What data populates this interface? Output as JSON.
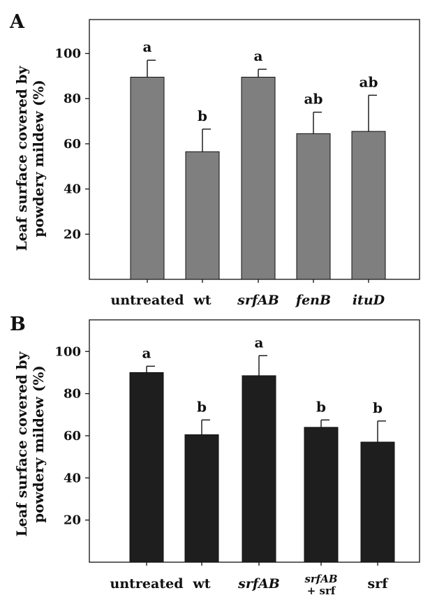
{
  "chart_data": [
    {
      "type": "bar",
      "panel": "A",
      "ylabel_line1": "Leaf surface covered by",
      "ylabel_line2": "powdery mildew  (%)",
      "ylim": [
        0,
        115
      ],
      "yticks": [
        20,
        40,
        60,
        80,
        100
      ],
      "categories": [
        {
          "lines": [
            "untreated"
          ],
          "italic": false
        },
        {
          "lines": [
            "wt"
          ],
          "italic": false
        },
        {
          "lines": [
            "srfAB"
          ],
          "italic": true
        },
        {
          "lines": [
            "fenB"
          ],
          "italic": true
        },
        {
          "lines": [
            "ituD"
          ],
          "italic": true
        }
      ],
      "values": [
        89.5,
        56.5,
        89.5,
        64.5,
        65.5
      ],
      "errors": [
        7.5,
        10,
        3.5,
        9.5,
        16
      ],
      "significance": [
        "a",
        "b",
        "a",
        "ab",
        "ab"
      ],
      "bar_color": "#7f7f7f",
      "grid": false
    },
    {
      "type": "bar",
      "panel": "B",
      "ylabel_line1": "Leaf surface covered by",
      "ylabel_line2": "powdery mildew  (%)",
      "ylim": [
        0,
        115
      ],
      "yticks": [
        20,
        40,
        60,
        80,
        100
      ],
      "categories": [
        {
          "lines": [
            "untreated"
          ],
          "italic": false
        },
        {
          "lines": [
            "wt"
          ],
          "italic": false
        },
        {
          "lines": [
            "srfAB"
          ],
          "italic": true
        },
        {
          "lines": [
            "srfAB",
            "+ srf"
          ],
          "italic": true
        },
        {
          "lines": [
            "srf"
          ],
          "italic": false
        }
      ],
      "values": [
        90,
        60.5,
        88.5,
        64,
        57
      ],
      "errors": [
        3,
        7,
        9.5,
        3.5,
        10
      ],
      "significance": [
        "a",
        "b",
        "a",
        "b",
        "b"
      ],
      "bar_color": "#1e1e1e",
      "grid": false
    }
  ]
}
